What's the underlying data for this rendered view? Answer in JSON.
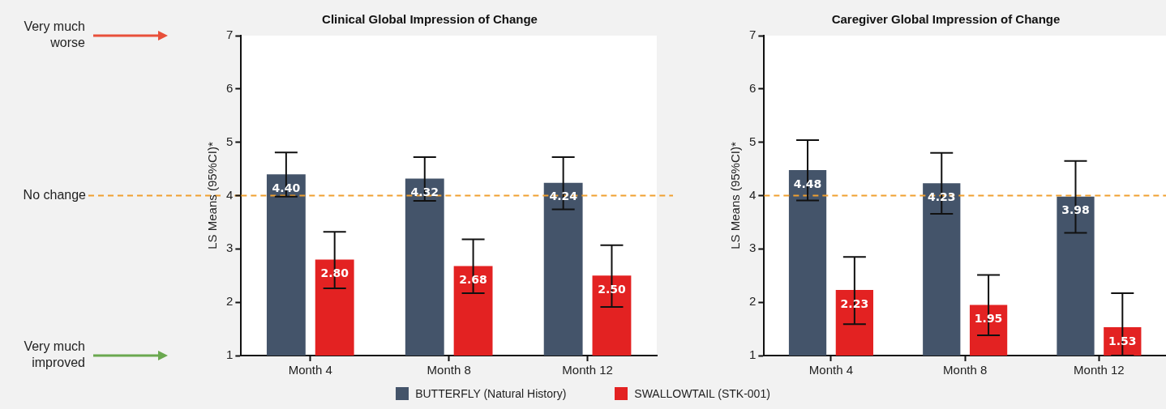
{
  "chart_data": [
    {
      "type": "bar",
      "title": "Clinical Global Impression of Change",
      "ylabel": "LS Means (95%CI)*",
      "categories": [
        "Month 4",
        "Month 8",
        "Month 12"
      ],
      "series": [
        {
          "name": "BUTTERFLY (Natural History)",
          "color": "#44546a",
          "values": [
            4.4,
            4.32,
            4.24
          ],
          "value_labels": [
            "4.40",
            "4.32",
            "4.24"
          ],
          "errors": [
            [
              3.98,
              4.81
            ],
            [
              3.9,
              4.72
            ],
            [
              3.74,
              4.72
            ]
          ]
        },
        {
          "name": "SWALLOWTAIL (STK-001)",
          "color": "#e32222",
          "values": [
            2.8,
            2.68,
            2.5
          ],
          "value_labels": [
            "2.80",
            "2.68",
            "2.50"
          ],
          "errors": [
            [
              2.26,
              3.32
            ],
            [
              2.17,
              3.18
            ],
            [
              1.91,
              3.07
            ]
          ]
        }
      ],
      "ylim": [
        1,
        7
      ],
      "yticks": [
        1,
        2,
        3,
        4,
        5,
        6,
        7
      ],
      "grid": false,
      "legend": "bottom",
      "ref_lines": [
        {
          "axis": "y",
          "value": 4,
          "label": "No change",
          "color": "#f0a030",
          "line_style": "dashed"
        }
      ],
      "annotations": [
        "Very much worse",
        "Very much improved"
      ]
    },
    {
      "type": "bar",
      "title": "Caregiver Global Impression of Change",
      "ylabel": "LS Means (95%CI)*",
      "categories": [
        "Month 4",
        "Month 8",
        "Month 12"
      ],
      "series": [
        {
          "color": "#44546a",
          "values": [
            4.48,
            4.23,
            3.98
          ],
          "value_labels": [
            "4.48",
            "4.23",
            "3.98"
          ],
          "errors": [
            [
              3.91,
              5.04
            ],
            [
              3.66,
              4.8
            ],
            [
              3.3,
              4.65
            ]
          ]
        },
        {
          "color": "#e32222",
          "values": [
            2.23,
            1.95,
            1.53
          ],
          "value_labels": [
            "2.23",
            "1.95",
            "1.53"
          ],
          "errors": [
            [
              1.59,
              2.85
            ],
            [
              1.38,
              2.51
            ],
            [
              1.0,
              2.17
            ]
          ]
        }
      ],
      "ylim": [
        1,
        7
      ],
      "yticks": [
        1,
        2,
        3,
        4,
        5,
        6,
        7
      ],
      "grid": false,
      "ref_lines": [
        {
          "axis": "y",
          "value": 4,
          "color": "#f0a030",
          "line_style": "dashed"
        }
      ]
    }
  ]
}
